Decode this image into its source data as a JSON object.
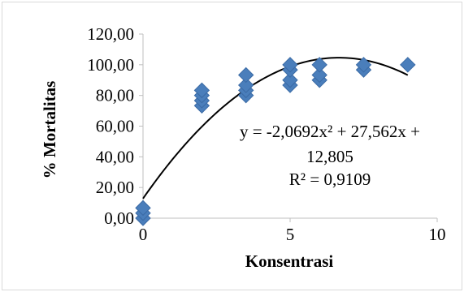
{
  "chart_data": {
    "type": "scatter",
    "title": "",
    "xlabel": "Konsentrasi",
    "ylabel": "% Mortalitas",
    "xlim": [
      0,
      10
    ],
    "ylim": [
      0,
      120
    ],
    "grid": false,
    "legend": "none",
    "x_ticks": [
      "0",
      "5",
      "10"
    ],
    "y_ticks": [
      "0,00",
      "20,00",
      "40,00",
      "60,00",
      "80,00",
      "100,00",
      "120,00"
    ],
    "series": [
      {
        "marker": "diamond",
        "color": "#4a7ebb",
        "points": [
          {
            "x": 0,
            "y": 0.0
          },
          {
            "x": 0,
            "y": 3.33
          },
          {
            "x": 0,
            "y": 6.67
          },
          {
            "x": 2,
            "y": 73.33
          },
          {
            "x": 2,
            "y": 76.67
          },
          {
            "x": 2,
            "y": 80.0
          },
          {
            "x": 2,
            "y": 83.33
          },
          {
            "x": 3.5,
            "y": 80.0
          },
          {
            "x": 3.5,
            "y": 83.33
          },
          {
            "x": 3.5,
            "y": 86.67
          },
          {
            "x": 3.5,
            "y": 93.33
          },
          {
            "x": 5,
            "y": 86.67
          },
          {
            "x": 5,
            "y": 90.0
          },
          {
            "x": 5,
            "y": 96.67
          },
          {
            "x": 5,
            "y": 100.0
          },
          {
            "x": 6,
            "y": 90.0
          },
          {
            "x": 6,
            "y": 93.33
          },
          {
            "x": 6,
            "y": 100.0
          },
          {
            "x": 7.5,
            "y": 96.67
          },
          {
            "x": 7.5,
            "y": 100.0
          },
          {
            "x": 9,
            "y": 100.0
          }
        ]
      }
    ],
    "trendline": {
      "type": "polynomial",
      "coefficients": {
        "a": -2.0692,
        "b": 27.562,
        "c": 12.805
      },
      "x_range": [
        0,
        9
      ],
      "color": "#000000",
      "equation_lines": [
        "y = -2,0692x² + 27,562x +",
        "12,805",
        "R² = 0,9109"
      ]
    }
  }
}
